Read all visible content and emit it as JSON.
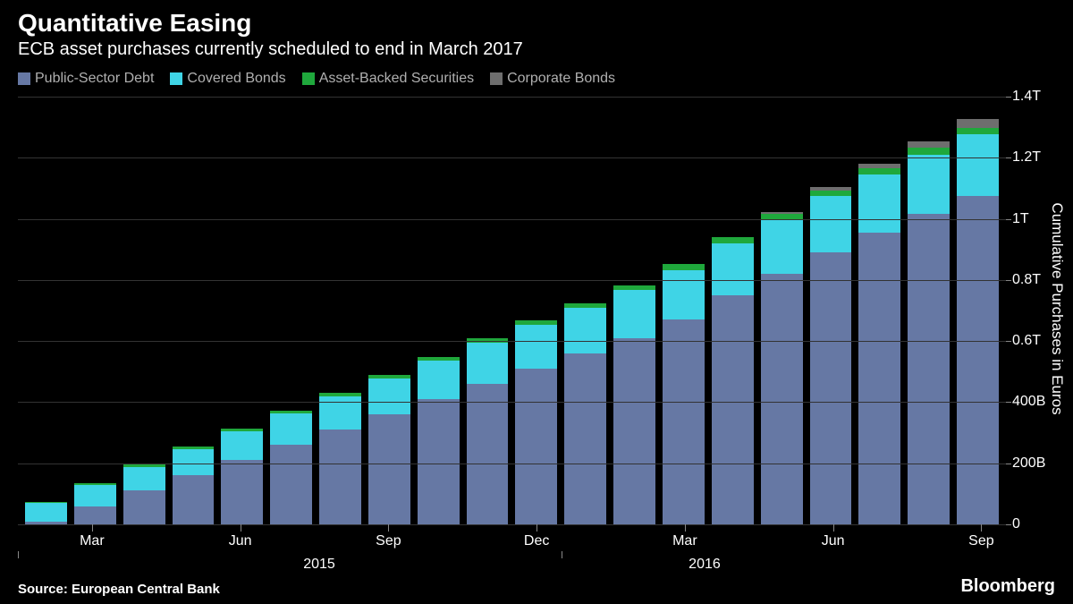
{
  "header": {
    "title": "Quantitative Easing",
    "subtitle": "ECB asset purchases currently scheduled to end in March 2017"
  },
  "footer": {
    "source": "Source: European Central Bank",
    "brand": "Bloomberg"
  },
  "chart": {
    "type": "stacked-bar",
    "background_color": "#000000",
    "grid_color": "#333333",
    "text_color": "#ffffff",
    "y_axis": {
      "title": "Cumulative Purchases in Euros",
      "min": 0,
      "max": 1400000000000,
      "ticks": [
        {
          "value": 0,
          "label": "0"
        },
        {
          "value": 200000000000,
          "label": "200B"
        },
        {
          "value": 400000000000,
          "label": "400B"
        },
        {
          "value": 600000000000,
          "label": "0.6T"
        },
        {
          "value": 800000000000,
          "label": "0.8T"
        },
        {
          "value": 1000000000000,
          "label": "1T"
        },
        {
          "value": 1200000000000,
          "label": "1.2T"
        },
        {
          "value": 1400000000000,
          "label": "1.4T"
        }
      ]
    },
    "x_axis": {
      "months": [
        {
          "label": "Mar",
          "index": 1
        },
        {
          "label": "Jun",
          "index": 4
        },
        {
          "label": "Sep",
          "index": 7
        },
        {
          "label": "Dec",
          "index": 10
        },
        {
          "label": "Mar",
          "index": 13
        },
        {
          "label": "Jun",
          "index": 16
        },
        {
          "label": "Sep",
          "index": 19
        }
      ],
      "years": [
        {
          "label": "2015",
          "pos": 0.305
        },
        {
          "label": "2016",
          "pos": 0.695
        }
      ]
    },
    "series": [
      {
        "key": "public_sector",
        "label": "Public-Sector Debt",
        "color": "#6678a4"
      },
      {
        "key": "covered_bonds",
        "label": "Covered Bonds",
        "color": "#3fd4e6"
      },
      {
        "key": "abs",
        "label": "Asset-Backed Securities",
        "color": "#1fa83c"
      },
      {
        "key": "corporate",
        "label": "Corporate Bonds",
        "color": "#6e6e6e"
      }
    ],
    "data": [
      {
        "public_sector": 10,
        "covered_bonds": 60,
        "abs": 3,
        "corporate": 0
      },
      {
        "public_sector": 60,
        "covered_bonds": 70,
        "abs": 5,
        "corporate": 0
      },
      {
        "public_sector": 110,
        "covered_bonds": 78,
        "abs": 7,
        "corporate": 0
      },
      {
        "public_sector": 160,
        "covered_bonds": 86,
        "abs": 8,
        "corporate": 0
      },
      {
        "public_sector": 210,
        "covered_bonds": 94,
        "abs": 9,
        "corporate": 0
      },
      {
        "public_sector": 260,
        "covered_bonds": 102,
        "abs": 10,
        "corporate": 0
      },
      {
        "public_sector": 310,
        "covered_bonds": 110,
        "abs": 11,
        "corporate": 0
      },
      {
        "public_sector": 360,
        "covered_bonds": 118,
        "abs": 12,
        "corporate": 0
      },
      {
        "public_sector": 410,
        "covered_bonds": 126,
        "abs": 13,
        "corporate": 0
      },
      {
        "public_sector": 460,
        "covered_bonds": 134,
        "abs": 14,
        "corporate": 0
      },
      {
        "public_sector": 510,
        "covered_bonds": 142,
        "abs": 15,
        "corporate": 0
      },
      {
        "public_sector": 560,
        "covered_bonds": 149,
        "abs": 16,
        "corporate": 0
      },
      {
        "public_sector": 610,
        "covered_bonds": 156,
        "abs": 17,
        "corporate": 0
      },
      {
        "public_sector": 670,
        "covered_bonds": 163,
        "abs": 18,
        "corporate": 0
      },
      {
        "public_sector": 750,
        "covered_bonds": 170,
        "abs": 19,
        "corporate": 0
      },
      {
        "public_sector": 820,
        "covered_bonds": 177,
        "abs": 20,
        "corporate": 5
      },
      {
        "public_sector": 890,
        "covered_bonds": 184,
        "abs": 20,
        "corporate": 10
      },
      {
        "public_sector": 955,
        "covered_bonds": 190,
        "abs": 21,
        "corporate": 15
      },
      {
        "public_sector": 1015,
        "covered_bonds": 196,
        "abs": 21,
        "corporate": 22
      },
      {
        "public_sector": 1075,
        "covered_bonds": 202,
        "abs": 22,
        "corporate": 28
      }
    ],
    "data_unit": 1000000000
  }
}
